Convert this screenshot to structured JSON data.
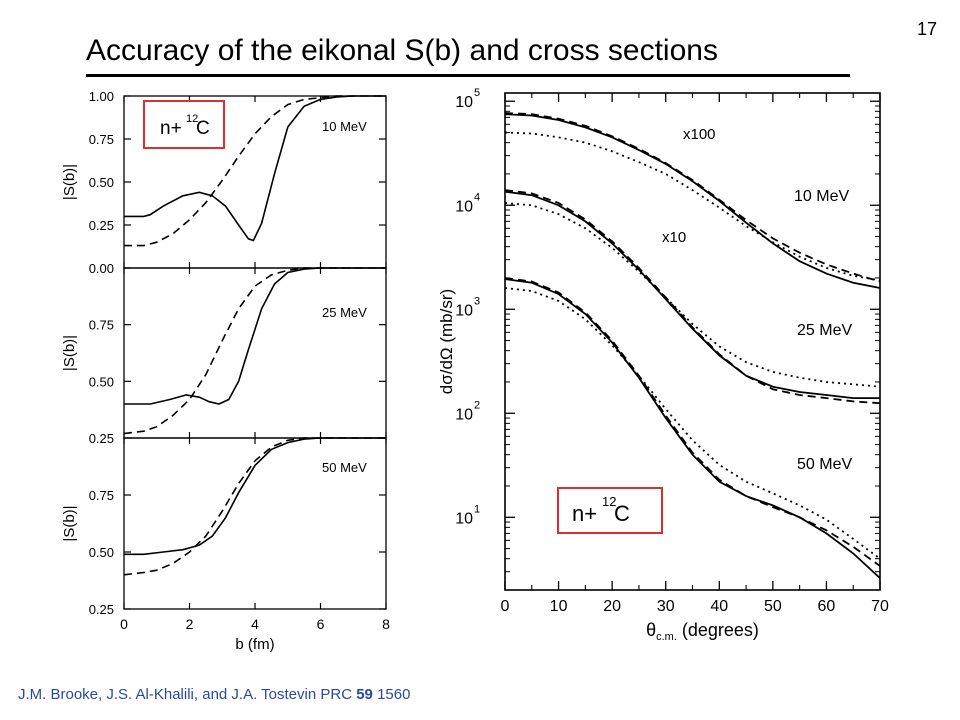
{
  "page": {
    "number": "17",
    "title": "Accuracy of the eikonal S(b) and cross sections",
    "citation_authors": "J.M. Brooke, J.S. Al-Khalili, and J.A. Tostevin PRC",
    "citation_volume": "59",
    "citation_page": "1560"
  },
  "colors": {
    "highlight_box": "#d93030",
    "citation_text": "#2a4a9a",
    "axes": "#000000"
  },
  "chart_data": [
    {
      "type": "line",
      "panel": "top-left",
      "ylabel": "|S(b)|",
      "xlim": [
        0,
        8
      ],
      "ylim": [
        0,
        1
      ],
      "yticks": [
        0.0,
        0.25,
        0.5,
        0.75,
        1.0
      ],
      "ytick_labels": [
        "0.00",
        "0.25",
        "0.50",
        "0.75",
        "1.00"
      ],
      "annotation": "10 MeV",
      "box_label": {
        "main": "n+",
        "sup": "12",
        "sub": "C"
      },
      "series": [
        {
          "style": "solid",
          "x": [
            0,
            0.6,
            0.8,
            1.2,
            1.8,
            2.3,
            2.7,
            3.1,
            3.5,
            3.8,
            3.95,
            4.2,
            4.6,
            5.0,
            5.5,
            6.0,
            6.5,
            7.0,
            8.0
          ],
          "y": [
            0.3,
            0.3,
            0.31,
            0.36,
            0.42,
            0.44,
            0.42,
            0.36,
            0.25,
            0.17,
            0.16,
            0.26,
            0.55,
            0.82,
            0.94,
            0.98,
            0.995,
            1.0,
            1.0
          ]
        },
        {
          "style": "dashed",
          "x": [
            0,
            0.6,
            1.0,
            1.5,
            2.0,
            2.5,
            3.0,
            3.5,
            4.0,
            4.5,
            5.0,
            5.5,
            6.0,
            6.5,
            7.0,
            8.0
          ],
          "y": [
            0.13,
            0.13,
            0.15,
            0.2,
            0.28,
            0.38,
            0.51,
            0.65,
            0.78,
            0.88,
            0.95,
            0.98,
            0.99,
            1.0,
            1.0,
            1.0
          ]
        }
      ]
    },
    {
      "type": "line",
      "panel": "middle-left",
      "ylabel": "|S(b)|",
      "xlim": [
        0,
        8
      ],
      "ylim": [
        0.25,
        1
      ],
      "yticks": [
        0.25,
        0.5,
        0.75
      ],
      "ytick_labels": [
        "0.25",
        "0.50",
        "0.75"
      ],
      "annotation": "25 MeV",
      "series": [
        {
          "style": "solid",
          "x": [
            0,
            0.8,
            1.4,
            1.9,
            2.3,
            2.6,
            2.9,
            3.2,
            3.5,
            3.8,
            4.2,
            4.6,
            5.0,
            5.5,
            6.0,
            6.5,
            8.0
          ],
          "y": [
            0.4,
            0.4,
            0.42,
            0.44,
            0.43,
            0.41,
            0.4,
            0.42,
            0.5,
            0.64,
            0.82,
            0.93,
            0.98,
            0.995,
            1.0,
            1.0,
            1.0
          ]
        },
        {
          "style": "dashed",
          "x": [
            0,
            0.6,
            1.0,
            1.5,
            2.0,
            2.5,
            3.0,
            3.5,
            4.0,
            4.5,
            5.0,
            5.5,
            6.0,
            8.0
          ],
          "y": [
            0.27,
            0.28,
            0.3,
            0.35,
            0.42,
            0.53,
            0.68,
            0.82,
            0.92,
            0.97,
            0.99,
            1.0,
            1.0,
            1.0
          ]
        }
      ]
    },
    {
      "type": "line",
      "panel": "bottom-left",
      "ylabel": "|S(b)|",
      "xlabel": "b (fm)",
      "xlim": [
        0,
        8
      ],
      "ylim": [
        0.25,
        1
      ],
      "xticks": [
        0,
        2,
        4,
        6,
        8
      ],
      "xtick_labels": [
        "0",
        "2",
        "4",
        "6",
        "8"
      ],
      "yticks": [
        0.25,
        0.5,
        0.75
      ],
      "ytick_labels": [
        "0.25",
        "0.50",
        "0.75"
      ],
      "annotation": "50 MeV",
      "series": [
        {
          "style": "solid",
          "x": [
            0,
            0.6,
            1.2,
            1.8,
            2.3,
            2.7,
            3.1,
            3.5,
            4.0,
            4.5,
            5.0,
            5.5,
            6.0,
            8.0
          ],
          "y": [
            0.49,
            0.49,
            0.5,
            0.51,
            0.53,
            0.57,
            0.65,
            0.76,
            0.88,
            0.95,
            0.98,
            0.995,
            1.0,
            1.0
          ]
        },
        {
          "style": "dashed",
          "x": [
            0,
            0.6,
            1.0,
            1.5,
            2.0,
            2.5,
            3.0,
            3.5,
            4.0,
            4.5,
            5.0,
            5.5,
            6.0,
            8.0
          ],
          "y": [
            0.4,
            0.41,
            0.42,
            0.45,
            0.5,
            0.57,
            0.68,
            0.8,
            0.9,
            0.96,
            0.99,
            1.0,
            1.0,
            1.0
          ]
        }
      ]
    },
    {
      "type": "line",
      "panel": "right",
      "xlabel": "θc.m. (degrees)",
      "xlabel_main": "θ",
      "xlabel_sub": "c.m.",
      "xlabel_rest": " (degrees)",
      "ylabel": "dσ/dΩ  (mb/sr)",
      "xlim": [
        0,
        70
      ],
      "ylim": [
        2,
        120000
      ],
      "yscale": "log",
      "xticks": [
        0,
        10,
        20,
        30,
        40,
        50,
        60,
        70
      ],
      "xtick_labels": [
        "0",
        "10",
        "20",
        "30",
        "40",
        "50",
        "60",
        "70"
      ],
      "yticks": [
        10,
        100,
        1000,
        10000,
        100000
      ],
      "ytick_labels": [
        {
          "b": "10",
          "e": "1"
        },
        {
          "b": "10",
          "e": "2"
        },
        {
          "b": "10",
          "e": "3"
        },
        {
          "b": "10",
          "e": "4"
        },
        {
          "b": "10",
          "e": "5"
        }
      ],
      "annotations": [
        "x100",
        "10 MeV",
        "x10",
        "25 MeV",
        "50 MeV"
      ],
      "box_label": {
        "main": "n+",
        "sup": "12",
        "sub": "C"
      },
      "series": [
        {
          "curve": "10 MeV x100",
          "style": "solid",
          "x": [
            0,
            5,
            10,
            15,
            20,
            25,
            30,
            35,
            40,
            45,
            50,
            55,
            60,
            65,
            70
          ],
          "y": [
            75000,
            73000,
            66000,
            56000,
            45000,
            34000,
            25000,
            17000,
            11000,
            6800,
            4300,
            2900,
            2200,
            1800,
            1600
          ]
        },
        {
          "curve": "10 MeV x100",
          "style": "dashed",
          "x": [
            0,
            5,
            10,
            15,
            20,
            25,
            30,
            35,
            40,
            45,
            50,
            55,
            60,
            65,
            70
          ],
          "y": [
            77000,
            75000,
            68000,
            58000,
            46000,
            35000,
            25500,
            17500,
            11300,
            7200,
            4800,
            3500,
            2700,
            2200,
            1850
          ]
        },
        {
          "curve": "10 MeV x100",
          "style": "dotted",
          "x": [
            0,
            5,
            10,
            15,
            20,
            25,
            30,
            35,
            40,
            45,
            50,
            55,
            60,
            65,
            70
          ],
          "y": [
            50000,
            49000,
            45000,
            40000,
            33000,
            26000,
            20000,
            14000,
            9500,
            6300,
            4400,
            3200,
            2500,
            2100,
            1900
          ]
        },
        {
          "curve": "25 MeV x10",
          "style": "solid",
          "x": [
            0,
            5,
            10,
            15,
            20,
            25,
            30,
            35,
            40,
            45,
            50,
            55,
            60,
            65,
            70
          ],
          "y": [
            13500,
            12500,
            10000,
            7000,
            4300,
            2400,
            1250,
            650,
            360,
            230,
            180,
            160,
            150,
            140,
            140
          ]
        },
        {
          "curve": "25 MeV x10",
          "style": "dashed",
          "x": [
            0,
            5,
            10,
            15,
            20,
            25,
            30,
            35,
            40,
            45,
            50,
            55,
            60,
            65,
            70
          ],
          "y": [
            14000,
            13000,
            10500,
            7300,
            4500,
            2500,
            1300,
            670,
            370,
            230,
            170,
            150,
            140,
            130,
            125
          ]
        },
        {
          "curve": "25 MeV x10",
          "style": "dotted",
          "x": [
            0,
            5,
            10,
            15,
            20,
            25,
            30,
            35,
            40,
            45,
            50,
            55,
            60,
            65,
            70
          ],
          "y": [
            10500,
            10000,
            8200,
            6000,
            3900,
            2300,
            1300,
            720,
            440,
            310,
            250,
            220,
            200,
            190,
            180
          ]
        },
        {
          "curve": "50 MeV",
          "style": "solid",
          "x": [
            0,
            5,
            10,
            15,
            20,
            25,
            30,
            35,
            40,
            45,
            50,
            55,
            60,
            65,
            70
          ],
          "y": [
            1950,
            1800,
            1400,
            900,
            480,
            220,
            90,
            40,
            22,
            16,
            13,
            10,
            7,
            4.5,
            2.6
          ]
        },
        {
          "curve": "50 MeV",
          "style": "dashed",
          "x": [
            0,
            5,
            10,
            15,
            20,
            25,
            30,
            35,
            40,
            45,
            50,
            55,
            60,
            65,
            70
          ],
          "y": [
            2000,
            1850,
            1450,
            930,
            500,
            230,
            95,
            42,
            23,
            16,
            12.5,
            10,
            7.5,
            5.2,
            3.4
          ]
        },
        {
          "curve": "50 MeV",
          "style": "dotted",
          "x": [
            0,
            5,
            10,
            15,
            20,
            25,
            30,
            35,
            40,
            45,
            50,
            55,
            60,
            65,
            70
          ],
          "y": [
            1600,
            1500,
            1200,
            800,
            450,
            230,
            110,
            55,
            32,
            22,
            17,
            13,
            9.5,
            6.2,
            4.0
          ]
        }
      ]
    }
  ]
}
